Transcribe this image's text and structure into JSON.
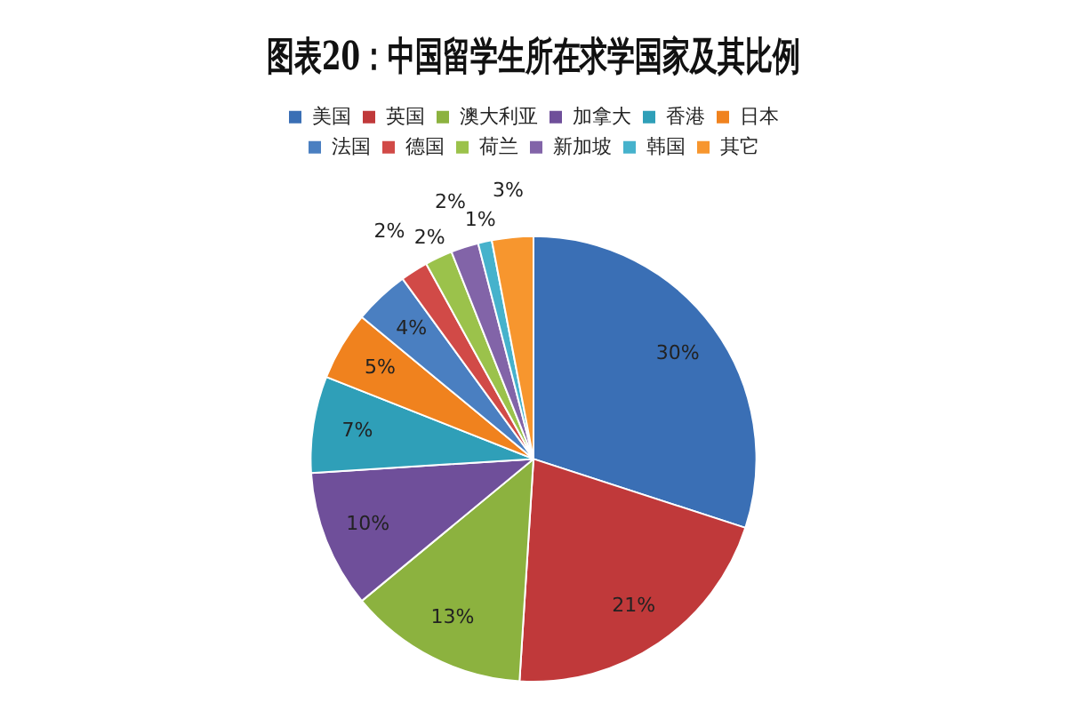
{
  "chart_data": {
    "type": "pie",
    "title": "图表20：中国留学生所在求学国家及其比例",
    "categories": [
      "美国",
      "英国",
      "澳大利亚",
      "加拿大",
      "香港",
      "日本",
      "法国",
      "德国",
      "荷兰",
      "新加坡",
      "韩国",
      "其它"
    ],
    "values": [
      30,
      21,
      13,
      10,
      7,
      5,
      4,
      2,
      2,
      2,
      1,
      3
    ],
    "colors": [
      "#3a6fb5",
      "#c0393a",
      "#8cb23f",
      "#6f4f9a",
      "#2f9fb8",
      "#f0821e",
      "#4a7fc1",
      "#d14a47",
      "#9bc24b",
      "#8264a8",
      "#46b2cc",
      "#f7962e"
    ],
    "value_labels": [
      "30%",
      "21%",
      "13%",
      "10%",
      "7%",
      "5%",
      "4%",
      "2%",
      "2%",
      "2%",
      "1%",
      "3%"
    ],
    "legend": "top"
  }
}
